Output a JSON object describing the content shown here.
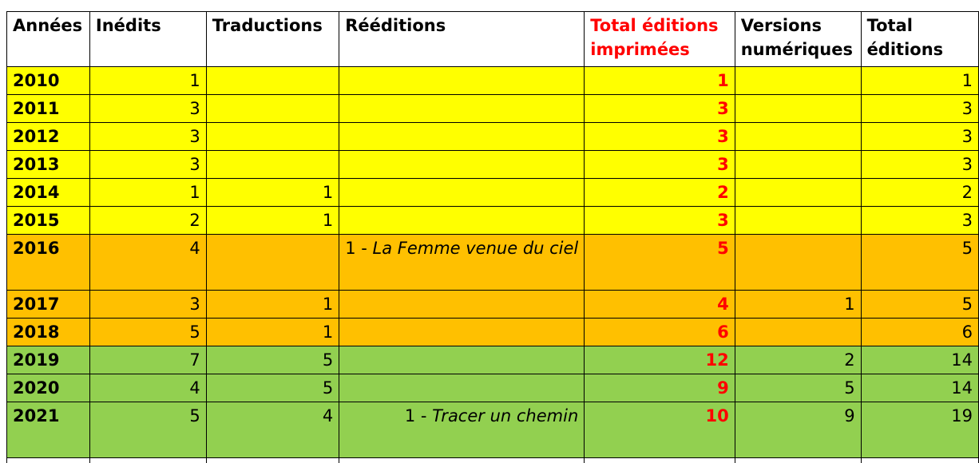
{
  "headers": {
    "annees": "Années",
    "inedits": "Inédits",
    "traductions": "Traductions",
    "reeditions": "Rééditions",
    "total_imprimees_l1": "Total éditions",
    "total_imprimees_l2": "imprimées",
    "versions_l1": "Versions",
    "versions_l2": "numériques",
    "total_l1": "Total",
    "total_l2": "éditions"
  },
  "colors": {
    "yellow": "#ffff00",
    "orange": "#ffc000",
    "green": "#92d050",
    "red": "#ff0000"
  },
  "rows": [
    {
      "year": "2010",
      "inedits": "1",
      "traductions": "",
      "reed_num": "",
      "reed_title": "",
      "total_print": "1",
      "versions": "",
      "total": "1"
    },
    {
      "year": "2011",
      "inedits": "3",
      "traductions": "",
      "reed_num": "",
      "reed_title": "",
      "total_print": "3",
      "versions": "",
      "total": "3"
    },
    {
      "year": "2012",
      "inedits": "3",
      "traductions": "",
      "reed_num": "",
      "reed_title": "",
      "total_print": "3",
      "versions": "",
      "total": "3"
    },
    {
      "year": "2013",
      "inedits": "3",
      "traductions": "",
      "reed_num": "",
      "reed_title": "",
      "total_print": "3",
      "versions": "",
      "total": "3"
    },
    {
      "year": "2014",
      "inedits": "1",
      "traductions": "1",
      "reed_num": "",
      "reed_title": "",
      "total_print": "2",
      "versions": "",
      "total": "2"
    },
    {
      "year": "2015",
      "inedits": "2",
      "traductions": "1",
      "reed_num": "",
      "reed_title": "",
      "total_print": "3",
      "versions": "",
      "total": "3"
    },
    {
      "year": "2016",
      "inedits": "4",
      "traductions": "",
      "reed_num": "1 - ",
      "reed_title": "La Femme venue du ciel",
      "total_print": "5",
      "versions": "",
      "total": "5"
    },
    {
      "year": "2017",
      "inedits": "3",
      "traductions": "1",
      "reed_num": "",
      "reed_title": "",
      "total_print": "4",
      "versions": "1",
      "total": "5"
    },
    {
      "year": "2018",
      "inedits": "5",
      "traductions": "1",
      "reed_num": "",
      "reed_title": "",
      "total_print": "6",
      "versions": "",
      "total": "6"
    },
    {
      "year": "2019",
      "inedits": "7",
      "traductions": "5",
      "reed_num": "",
      "reed_title": "",
      "total_print": "12",
      "versions": "2",
      "total": "14"
    },
    {
      "year": "2020",
      "inedits": "4",
      "traductions": "5",
      "reed_num": "",
      "reed_title": "",
      "total_print": "9",
      "versions": "5",
      "total": "14"
    },
    {
      "year": "2021",
      "inedits": "5",
      "traductions": "4",
      "reed_num": "1 - ",
      "reed_title": "Tracer un chemin",
      "total_print": "10",
      "versions": "9",
      "total": "19"
    }
  ]
}
